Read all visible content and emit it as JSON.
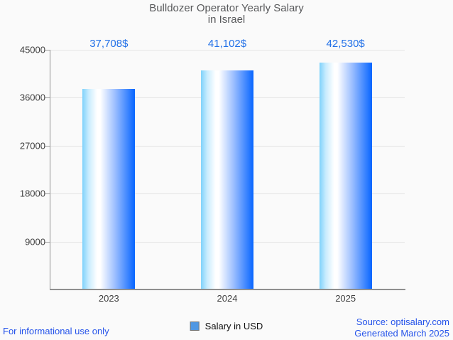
{
  "title": {
    "line1": "Bulldozer Operator Yearly Salary",
    "line2": "in Israel"
  },
  "legend": {
    "label": "Salary in USD",
    "marker_color": "#4f97e3"
  },
  "footer": {
    "left": "For informational use only",
    "source": "Source: optisalary.com",
    "generated": "Generated March 2025"
  },
  "colors": {
    "background": "#fafafa",
    "title_text": "#58595b",
    "value_label_blue": "#2170e8",
    "footer_blue": "#2553ea",
    "axis_line": "#8f8f8f",
    "gridline": "#e4e4e4",
    "axis_label_text": "#404040",
    "bar_gradient": [
      "#7fd2fb",
      "#ffffff",
      "#0765ff"
    ]
  },
  "chart_data": {
    "type": "bar",
    "title": "Bulldozer Operator Yearly Salary in Israel",
    "categories": [
      "2023",
      "2024",
      "2025"
    ],
    "series": [
      {
        "name": "Salary in USD",
        "values": [
          37708,
          41102,
          42530
        ]
      }
    ],
    "value_labels": [
      "37,708$",
      "41,102$",
      "42,530$"
    ],
    "xlabel": "",
    "ylabel": "",
    "ylim": [
      0,
      45000
    ],
    "yticks": [
      45000,
      36000,
      27000,
      18000,
      9000
    ],
    "grid": true,
    "legend_position": "bottom"
  }
}
